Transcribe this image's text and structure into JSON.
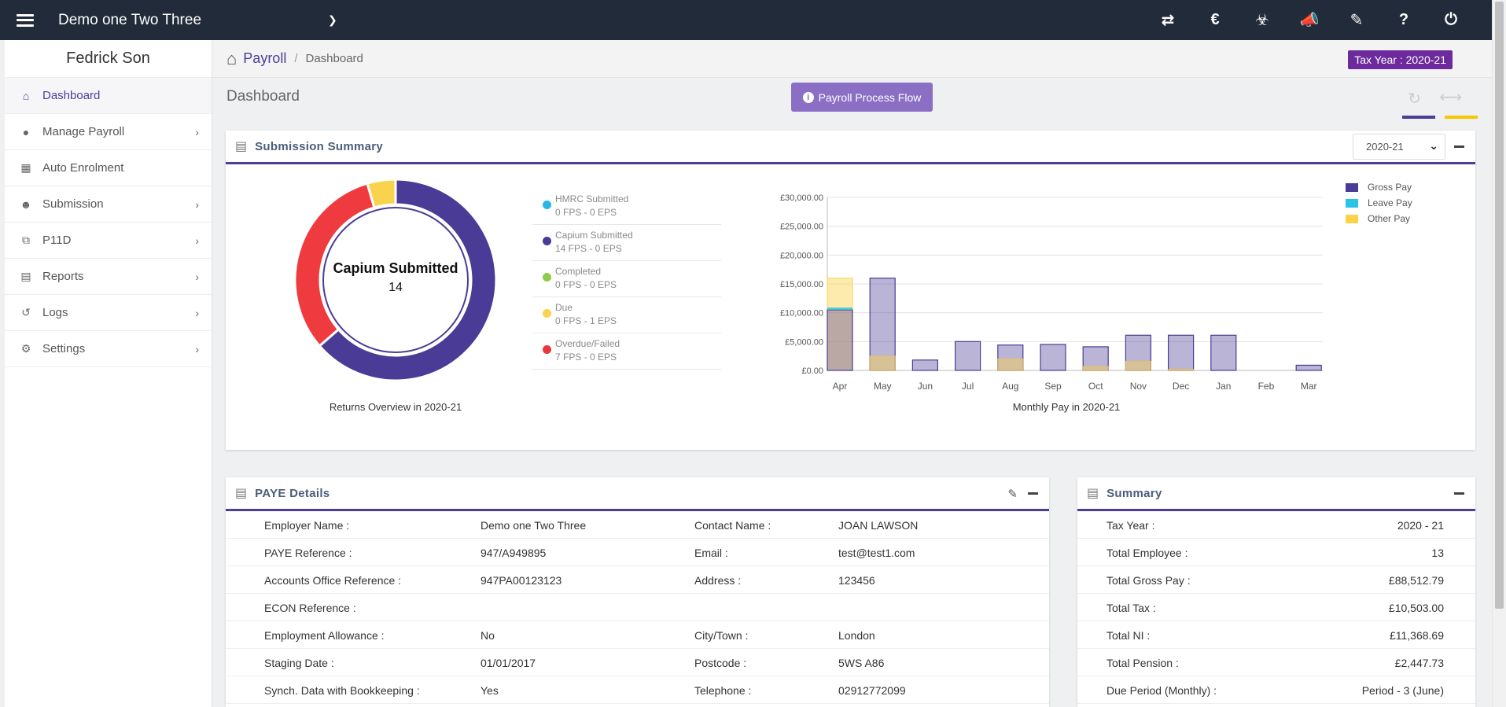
{
  "topbar": {
    "company": "Demo one Two Three",
    "icons": [
      "swap-icon",
      "currency-icon",
      "cubes-icon",
      "megaphone-icon",
      "ticket-icon",
      "help-icon",
      "power-icon"
    ]
  },
  "sidebar": {
    "user": "Fedrick Son",
    "items": [
      {
        "label": "Dashboard",
        "icon": "home-icon",
        "active": true
      },
      {
        "label": "Manage Payroll",
        "icon": "user-icon"
      },
      {
        "label": "Auto Enrolment",
        "icon": "grid-icon"
      },
      {
        "label": "Submission",
        "icon": "users-icon"
      },
      {
        "label": "P11D",
        "icon": "copy-icon"
      },
      {
        "label": "Reports",
        "icon": "building-icon"
      },
      {
        "label": "Logs",
        "icon": "history-icon"
      },
      {
        "label": "Settings",
        "icon": "gear-icon"
      }
    ]
  },
  "breadcrumb": {
    "root": "Payroll",
    "sep": "/",
    "current": "Dashboard"
  },
  "tax_year_badge": "Tax Year : 2020-21",
  "page": {
    "title": "Dashboard",
    "flow_button": "Payroll Process Flow"
  },
  "submission": {
    "title": "Submission Summary",
    "year_select": "2020-21",
    "donut": {
      "center_title": "Capium Submitted",
      "center_value": "14",
      "caption": "Returns Overview in 2020-21"
    },
    "legend": [
      {
        "name": "HMRC Submitted",
        "value": "0 FPS - 0 EPS",
        "color": "#29b6e6"
      },
      {
        "name": "Capium Submitted",
        "value": "14 FPS - 0 EPS",
        "color": "#4a3c96"
      },
      {
        "name": "Completed",
        "value": "0 FPS - 0 EPS",
        "color": "#8ccc4a"
      },
      {
        "name": "Due",
        "value": "0 FPS - 1 EPS",
        "color": "#f9d24e"
      },
      {
        "name": "Overdue/Failed",
        "value": "7 FPS - 0 EPS",
        "color": "#e8383d"
      }
    ],
    "chart_caption": "Monthly Pay in 2020-21"
  },
  "chart_data": {
    "type": "bar",
    "title": "Monthly Pay in 2020-21",
    "categories": [
      "Apr",
      "May",
      "Jun",
      "Jul",
      "Aug",
      "Sep",
      "Oct",
      "Nov",
      "Dec",
      "Jan",
      "Feb",
      "Mar"
    ],
    "series": [
      {
        "name": "Gross Pay",
        "color": "#4a3c96",
        "values": [
          10500,
          16000,
          1800,
          5000,
          4400,
          4500,
          4100,
          6100,
          6100,
          6100,
          0,
          900
        ]
      },
      {
        "name": "Leave Pay",
        "color": "#29c4e6",
        "values": [
          400,
          0,
          0,
          0,
          0,
          0,
          0,
          0,
          0,
          0,
          0,
          0
        ]
      },
      {
        "name": "Other Pay",
        "color": "#fbd34a",
        "values": [
          16000,
          2500,
          0,
          0,
          2000,
          0,
          700,
          1600,
          200,
          0,
          0,
          0
        ]
      }
    ],
    "yticks": [
      "£0.00",
      "£5,000.00",
      "£10,000.00",
      "£15,000.00",
      "£20,000.00",
      "£25,000.00",
      "£30,000.00"
    ],
    "ylim": [
      0,
      30000
    ],
    "legend": [
      "Gross Pay",
      "Leave Pay",
      "Other Pay"
    ]
  },
  "donut_data": {
    "segments": [
      {
        "name": "Capium Submitted",
        "value": 14,
        "color": "#4a3c96"
      },
      {
        "name": "Overdue/Failed",
        "value": 7,
        "color": "#ef3a3f"
      },
      {
        "name": "Due",
        "value": 1,
        "color": "#f9d24e"
      }
    ]
  },
  "paye": {
    "title": "PAYE Details",
    "rows": [
      [
        "Employer Name :",
        "Demo one Two Three",
        "Contact Name :",
        "JOAN LAWSON"
      ],
      [
        "PAYE Reference :",
        "947/A949895",
        "Email :",
        "test@test1.com"
      ],
      [
        "Accounts Office Reference :",
        "947PA00123123",
        "Address :",
        "123456"
      ],
      [
        "ECON Reference :",
        "",
        "",
        ""
      ],
      [
        "Employment Allowance :",
        "No",
        "City/Town :",
        "London"
      ],
      [
        "Staging Date :",
        "01/01/2017",
        "Postcode :",
        "5WS A86"
      ],
      [
        "Synch. Data with Bookkeeping :",
        "Yes",
        "Telephone :",
        "02912772099"
      ]
    ]
  },
  "summary": {
    "title": "Summary",
    "rows": [
      [
        "Tax Year :",
        "2020 - 21"
      ],
      [
        "Total Employee :",
        "13"
      ],
      [
        "Total Gross Pay :",
        "£88,512.79"
      ],
      [
        "Total Tax :",
        "£10,503.00"
      ],
      [
        "Total NI :",
        "£11,368.69"
      ],
      [
        "Total Pension :",
        "£2,447.73"
      ],
      [
        "Due Period (Monthly) :",
        "Period - 3 (June)"
      ]
    ]
  }
}
